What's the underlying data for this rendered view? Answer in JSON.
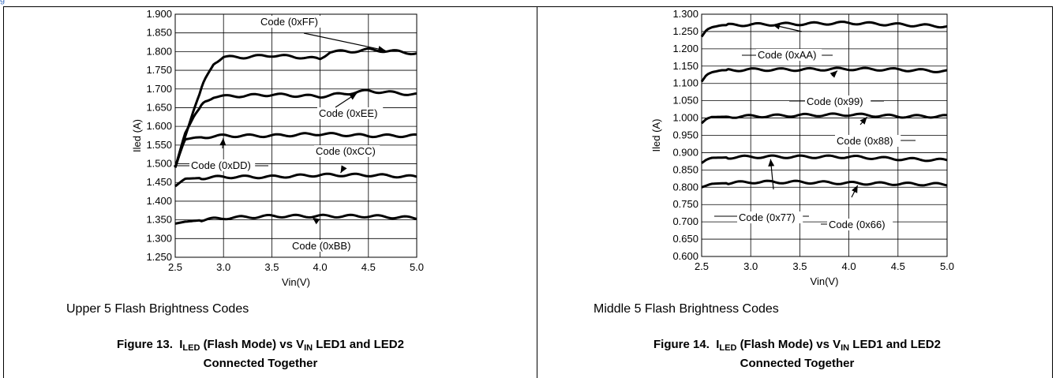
{
  "top_link": "g",
  "panels": [
    {
      "subtitle": "Upper 5 Flash Brightness Codes",
      "caption": {
        "number": "Figure 13.",
        "i_main": "I",
        "i_sub": "LED",
        "mode": "(Flash Mode) vs",
        "v_main": "V",
        "v_sub": "IN",
        "tail": "LED1 and LED2",
        "line2": "Connected Together"
      }
    },
    {
      "subtitle": "Middle 5 Flash Brightness Codes",
      "caption": {
        "number": "Figure 14.",
        "i_main": "I",
        "i_sub": "LED",
        "mode": "(Flash Mode) vs",
        "v_main": "V",
        "v_sub": "IN",
        "tail": "LED1 and LED2",
        "line2": "Connected Together"
      }
    }
  ],
  "chart_data": [
    {
      "type": "line",
      "xlabel": "Vin(V)",
      "ylabel": "Iled (A)",
      "xlim": [
        2.5,
        5.0
      ],
      "ylim": [
        1.25,
        1.9
      ],
      "xticks": [
        "2.5",
        "3.0",
        "3.5",
        "4.0",
        "4.5",
        "5.0"
      ],
      "yticks": [
        "1.250",
        "1.300",
        "1.350",
        "1.400",
        "1.450",
        "1.500",
        "1.550",
        "1.600",
        "1.650",
        "1.700",
        "1.750",
        "1.800",
        "1.850",
        "1.900"
      ],
      "grid": true,
      "series": [
        {
          "name": "Code (0xFF)",
          "x": [
            2.5,
            2.6,
            2.7,
            2.8,
            2.9,
            3.0,
            3.2,
            3.5,
            3.8,
            4.0,
            4.1,
            4.3,
            4.5,
            4.8,
            5.0
          ],
          "y": [
            1.49,
            1.57,
            1.65,
            1.72,
            1.77,
            1.785,
            1.785,
            1.79,
            1.785,
            1.78,
            1.8,
            1.8,
            1.805,
            1.8,
            1.795
          ]
        },
        {
          "name": "Code (0xEE)",
          "x": [
            2.5,
            2.6,
            2.7,
            2.8,
            2.9,
            3.0,
            3.5,
            4.0,
            4.5,
            5.0
          ],
          "y": [
            1.49,
            1.58,
            1.63,
            1.665,
            1.68,
            1.68,
            1.685,
            1.68,
            1.695,
            1.685
          ]
        },
        {
          "name": "Code (0xDD)",
          "x": [
            2.5,
            2.55,
            2.6,
            2.7,
            3.0,
            3.5,
            4.0,
            4.5,
            5.0
          ],
          "y": [
            1.49,
            1.53,
            1.565,
            1.57,
            1.575,
            1.575,
            1.58,
            1.575,
            1.575
          ]
        },
        {
          "name": "Code (0xCC)",
          "x": [
            2.5,
            2.6,
            3.0,
            3.5,
            4.0,
            4.5,
            5.0
          ],
          "y": [
            1.44,
            1.46,
            1.465,
            1.465,
            1.47,
            1.47,
            1.465
          ]
        },
        {
          "name": "Code (0xBB)",
          "x": [
            2.5,
            2.6,
            2.8,
            3.0,
            3.5,
            4.0,
            4.5,
            5.0
          ],
          "y": [
            1.34,
            1.345,
            1.35,
            1.355,
            1.36,
            1.36,
            1.36,
            1.355
          ]
        }
      ]
    },
    {
      "type": "line",
      "xlabel": "Vin(V)",
      "ylabel": "Iled (A)",
      "xlim": [
        2.5,
        5.0
      ],
      "ylim": [
        0.6,
        1.3
      ],
      "xticks": [
        "2.5",
        "3.0",
        "3.5",
        "4.0",
        "4.5",
        "5.0"
      ],
      "yticks": [
        "0.600",
        "0.650",
        "0.700",
        "0.750",
        "0.800",
        "0.850",
        "0.900",
        "0.950",
        "1.000",
        "1.050",
        "1.100",
        "1.150",
        "1.200",
        "1.250",
        "1.300"
      ],
      "grid": true,
      "series": [
        {
          "name": "Code (0xAA)",
          "x": [
            2.5,
            2.55,
            2.6,
            2.7,
            3.0,
            3.5,
            4.0,
            4.5,
            5.0
          ],
          "y": [
            1.235,
            1.255,
            1.262,
            1.268,
            1.27,
            1.272,
            1.275,
            1.27,
            1.265
          ]
        },
        {
          "name": "Code (0x99)",
          "x": [
            2.5,
            2.55,
            2.6,
            2.7,
            3.0,
            3.5,
            4.0,
            4.5,
            5.0
          ],
          "y": [
            1.105,
            1.125,
            1.132,
            1.138,
            1.14,
            1.14,
            1.142,
            1.14,
            1.135
          ]
        },
        {
          "name": "Code (0x88)",
          "x": [
            2.5,
            2.55,
            2.6,
            3.0,
            3.5,
            4.0,
            4.5,
            5.0
          ],
          "y": [
            0.985,
            0.998,
            1.003,
            1.005,
            1.008,
            1.01,
            1.005,
            1.005
          ]
        },
        {
          "name": "Code (0x77)",
          "x": [
            2.5,
            2.55,
            2.6,
            3.0,
            3.5,
            4.0,
            4.5,
            5.0
          ],
          "y": [
            0.87,
            0.88,
            0.885,
            0.888,
            0.888,
            0.888,
            0.882,
            0.878
          ]
        },
        {
          "name": "Code (0x66)",
          "x": [
            2.5,
            2.6,
            3.0,
            3.5,
            4.0,
            4.5,
            5.0
          ],
          "y": [
            0.8,
            0.81,
            0.815,
            0.815,
            0.812,
            0.81,
            0.808
          ]
        }
      ]
    }
  ]
}
